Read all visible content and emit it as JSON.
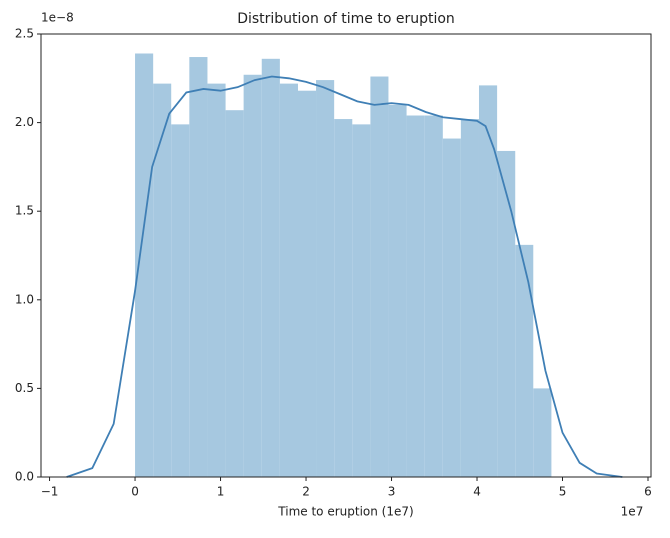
{
  "chart_data": {
    "type": "histogram",
    "title": "Distribution of time to eruption",
    "x_label": "Time to eruption (1e7)",
    "x_offset_label": "1e7",
    "y_offset_label": "1e−8",
    "bins": [
      0,
      0.212,
      0.423,
      0.635,
      0.847,
      1.059,
      1.27,
      1.482,
      1.694,
      1.906,
      2.117,
      2.329,
      2.541,
      2.753,
      2.964,
      3.176,
      3.388,
      3.6,
      3.811,
      4.023,
      4.235,
      4.447,
      4.658,
      4.87
    ],
    "values": [
      2.39,
      2.22,
      1.99,
      2.37,
      2.22,
      2.07,
      2.27,
      2.36,
      2.22,
      2.18,
      2.24,
      2.02,
      1.99,
      2.26,
      2.1,
      2.04,
      2.04,
      1.91,
      2.02,
      2.21,
      1.84,
      1.31,
      0.5
    ],
    "color": "#a6c8e0",
    "kde": {
      "color": "#3f7fb5",
      "x": [
        -0.8,
        -0.5,
        -0.25,
        0,
        0.2,
        0.4,
        0.6,
        0.8,
        1.0,
        1.2,
        1.4,
        1.6,
        1.8,
        2.0,
        2.2,
        2.4,
        2.6,
        2.8,
        3.0,
        3.2,
        3.4,
        3.6,
        3.8,
        4.0,
        4.1,
        4.2,
        4.4,
        4.6,
        4.8,
        5.0,
        5.2,
        5.4,
        5.7
      ],
      "values": [
        0,
        0.05,
        0.3,
        1.05,
        1.75,
        2.05,
        2.17,
        2.19,
        2.18,
        2.2,
        2.24,
        2.26,
        2.25,
        2.23,
        2.2,
        2.16,
        2.12,
        2.1,
        2.11,
        2.1,
        2.06,
        2.03,
        2.02,
        2.01,
        1.98,
        1.85,
        1.5,
        1.1,
        0.6,
        0.25,
        0.08,
        0.02,
        0
      ]
    },
    "xlim": [
      -1.1,
      6.035
    ],
    "ylim": [
      0,
      2.5
    ],
    "xticks": [
      {
        "value": -1,
        "label": "−1"
      },
      0,
      1,
      2,
      3,
      4,
      5,
      6
    ],
    "yticks": [
      {
        "value": 0,
        "label": "0.0"
      },
      0.5,
      {
        "value": 1,
        "label": "1.0"
      },
      1.5,
      {
        "value": 2,
        "label": "2.0"
      },
      2.5
    ]
  }
}
